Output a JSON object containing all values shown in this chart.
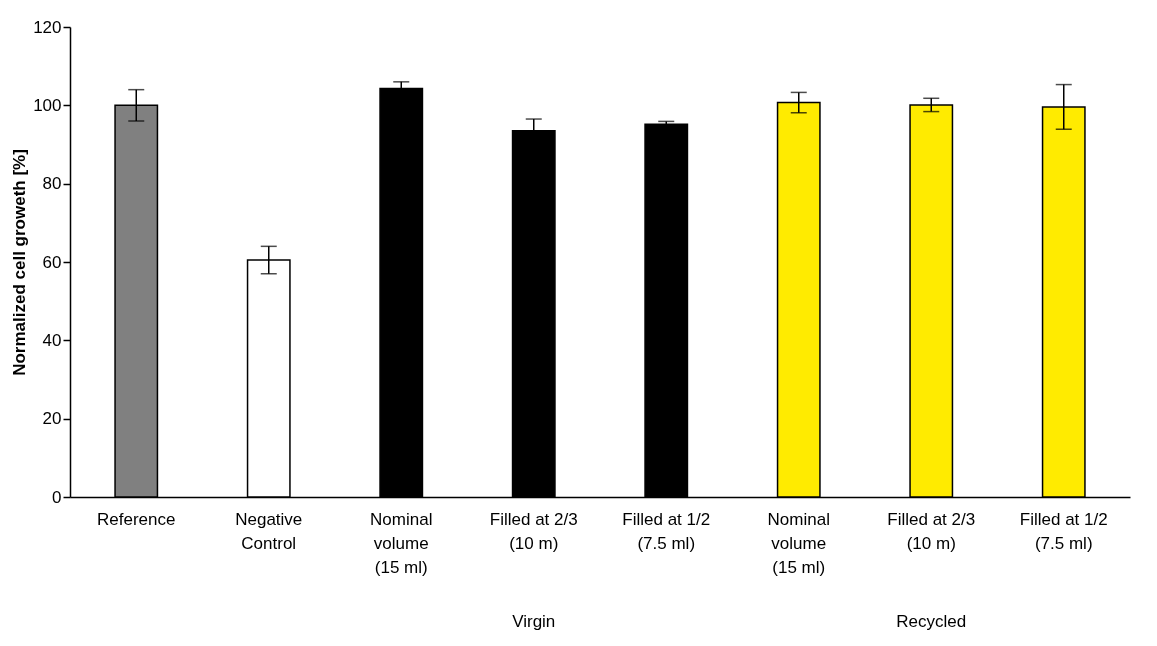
{
  "chart_data": {
    "type": "bar",
    "ylabel": "Normalized cell groweth [%]",
    "categories": [
      "Reference",
      "Negative\nControl",
      "Nominal\nvolume\n(15 ml)",
      "Filled at 2/3\n(10 m)",
      "Filled at 1/2\n(7.5 ml)",
      "Nominal\nvolume\n(15 ml)",
      "Filled at 2/3\n(10 m)",
      "Filled at 1/2\n(7.5 ml)"
    ],
    "values": [
      100,
      60.5,
      104.3,
      93.5,
      95.2,
      100.7,
      100.1,
      99.6
    ],
    "errors": [
      4,
      3.5,
      1.7,
      3,
      0.7,
      2.6,
      1.7,
      5.7
    ],
    "colors": [
      "#808080",
      "#ffffff",
      "#000000",
      "#000000",
      "#000000",
      "#ffeb00",
      "#ffeb00",
      "#ffeb00"
    ],
    "ylim": [
      0,
      120
    ],
    "yticks": [
      0,
      20,
      40,
      60,
      80,
      100,
      120
    ],
    "grid": false,
    "legend": false,
    "annotations": [
      "Virgin",
      "Recycled"
    ]
  }
}
